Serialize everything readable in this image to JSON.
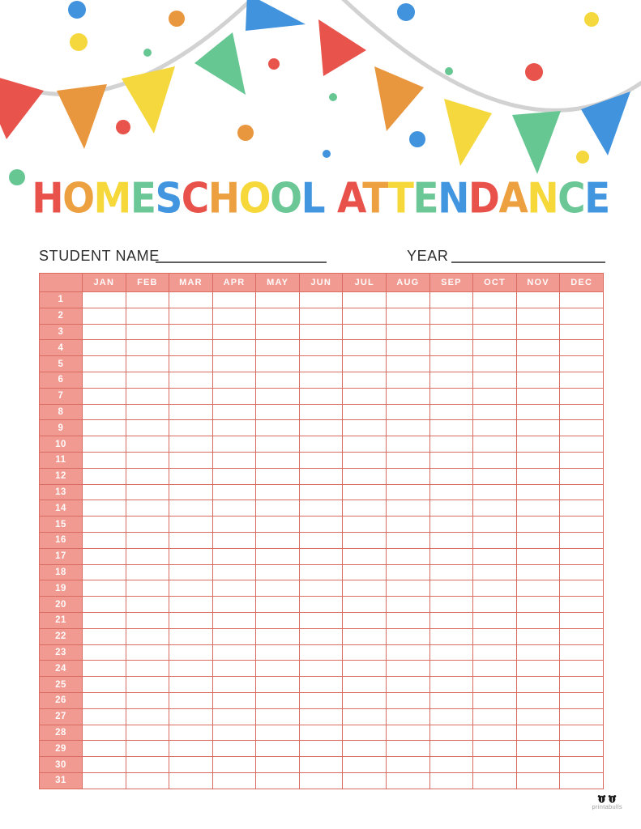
{
  "title": {
    "text": "HOMESCHOOL ATTENDANCE"
  },
  "form": {
    "student_name_label": "STUDENT NAME",
    "year_label": "YEAR"
  },
  "table": {
    "months": [
      "JAN",
      "FEB",
      "MAR",
      "APR",
      "MAY",
      "JUN",
      "JUL",
      "AUG",
      "SEP",
      "OCT",
      "NOV",
      "DEC"
    ],
    "days": [
      "1",
      "2",
      "3",
      "4",
      "5",
      "6",
      "7",
      "8",
      "9",
      "10",
      "11",
      "12",
      "13",
      "14",
      "15",
      "16",
      "17",
      "18",
      "19",
      "20",
      "21",
      "22",
      "23",
      "24",
      "25",
      "26",
      "27",
      "28",
      "29",
      "30",
      "31"
    ]
  },
  "footer": {
    "brand": "printabulls"
  },
  "decoration": {
    "flag_colors": [
      "red",
      "orange",
      "yellow",
      "green",
      "blue"
    ],
    "dot_colors": [
      "blue",
      "orange",
      "yellow",
      "green",
      "red"
    ]
  },
  "colors": {
    "letter_cycle": [
      "#e8524a",
      "#eda03f",
      "#f6d83b",
      "#6cc796",
      "#4296e0"
    ],
    "red": "#e8534b",
    "orange": "#e9973f",
    "yellow": "#f5d83d",
    "green": "#67c793",
    "blue": "#4193dd",
    "salmon_fill": "#f19a91",
    "grid_line": "#d96b61",
    "rope_gray": "#d2d2d2",
    "header_text": "#ffffff",
    "label_text": "#2e2e2e",
    "brand_text": "#9a9a9a"
  }
}
